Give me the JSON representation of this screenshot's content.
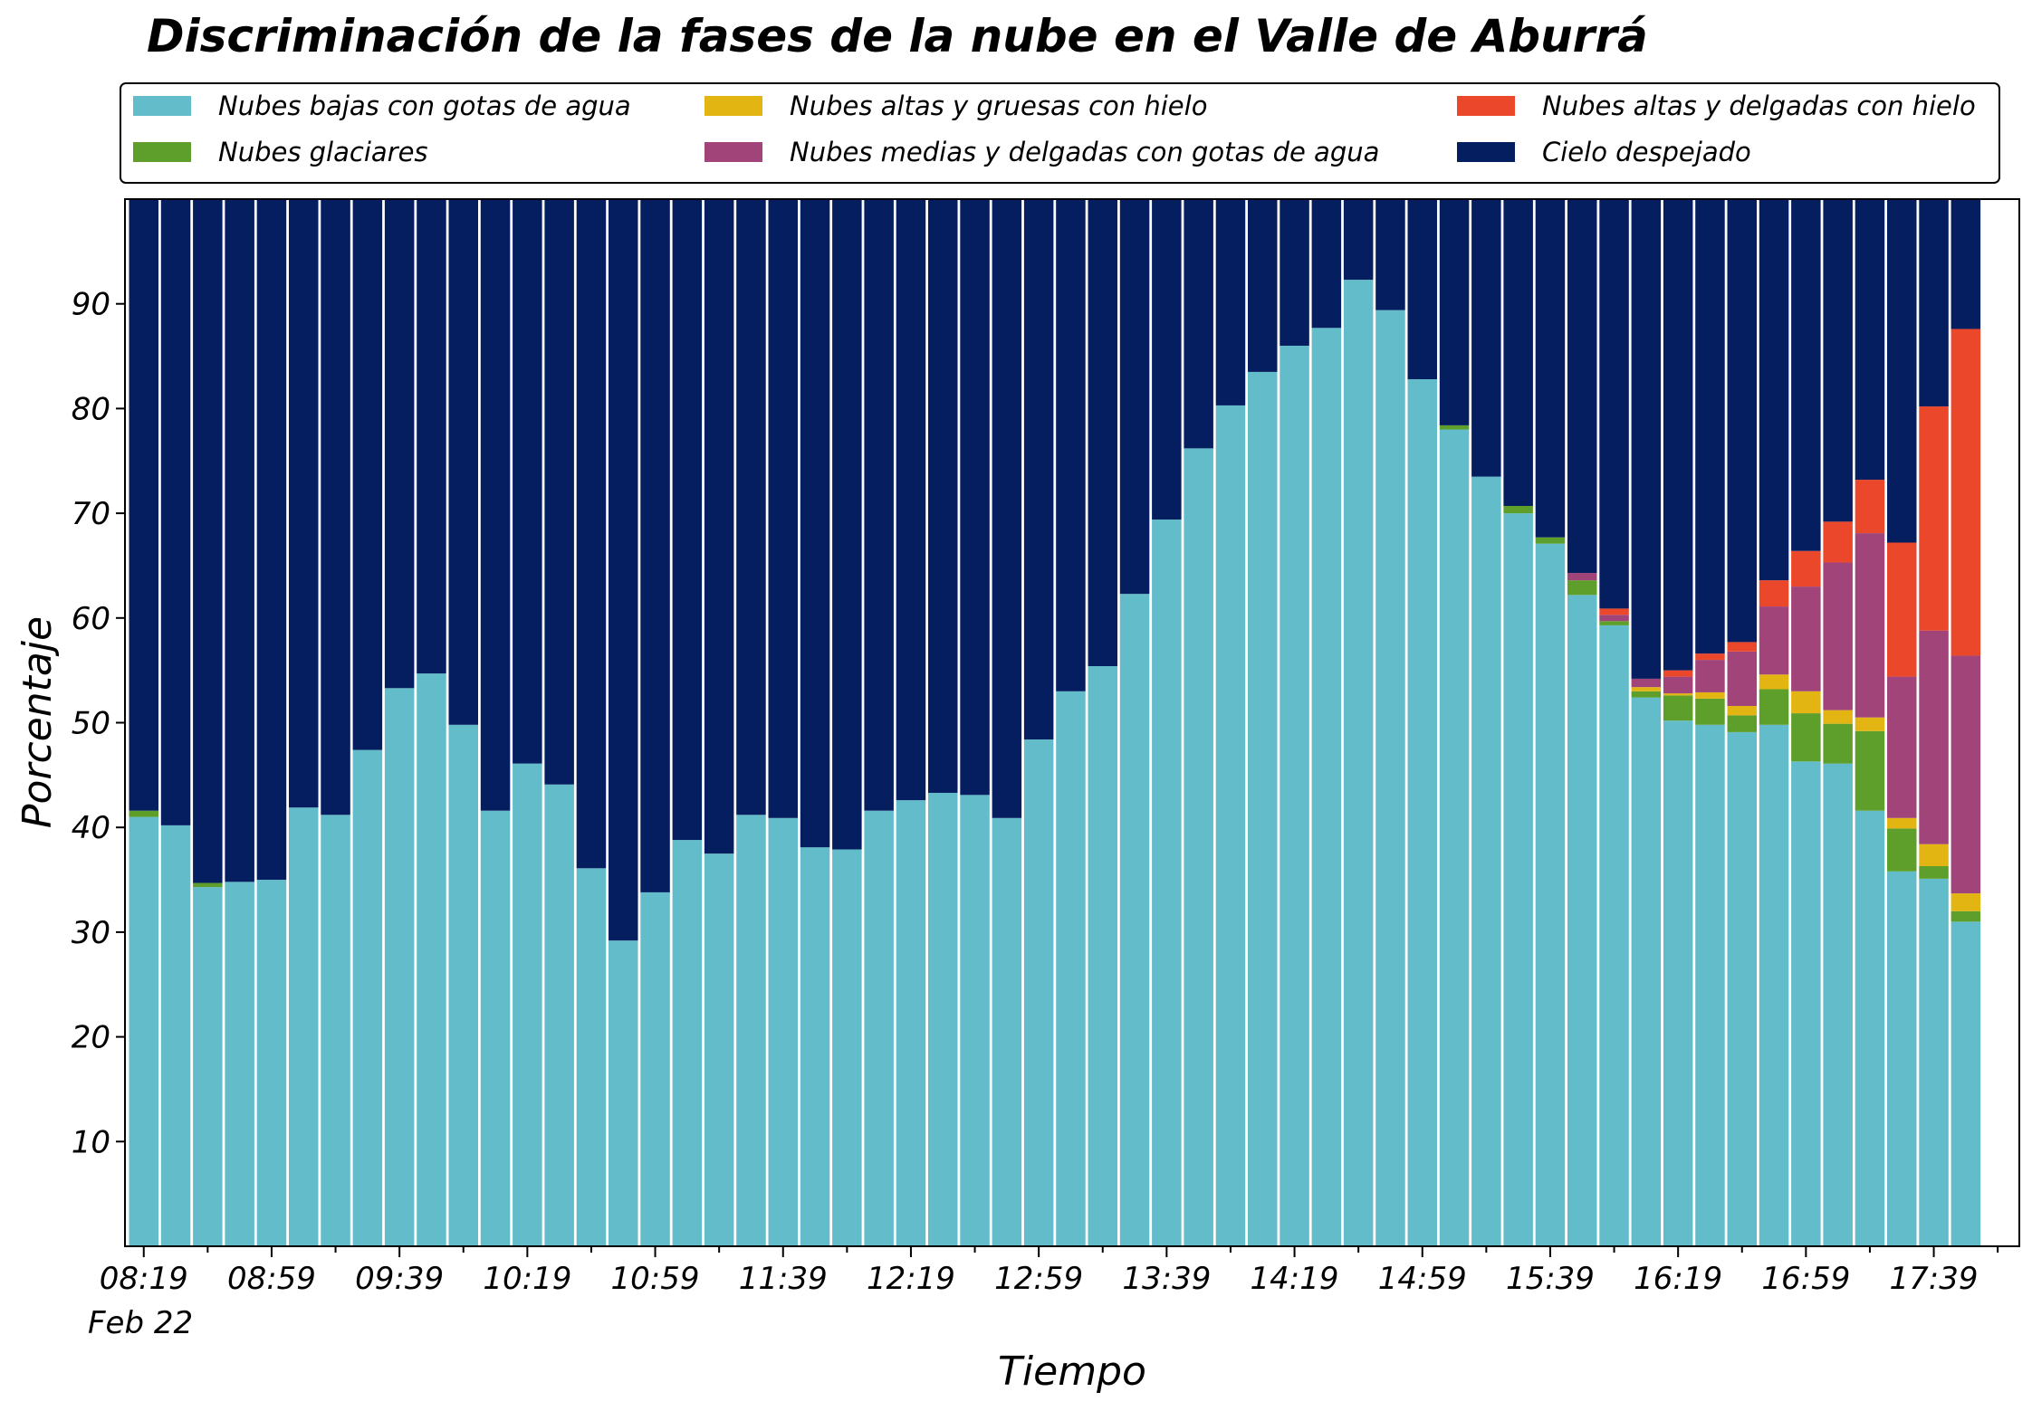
{
  "chart_data": {
    "type": "bar",
    "stacked": true,
    "title": "Discriminación de la fases de la nube en el Valle de Aburrá",
    "xlabel": "Tiempo",
    "ylabel": "Porcentaje",
    "ylim": [
      0,
      100
    ],
    "yticks": [
      10,
      20,
      30,
      40,
      50,
      60,
      70,
      80,
      90
    ],
    "grid": false,
    "legend_position": "top",
    "xtick_labels": [
      "08:19",
      "08:59",
      "09:39",
      "10:19",
      "10:59",
      "11:39",
      "12:19",
      "12:59",
      "13:39",
      "14:19",
      "14:59",
      "15:39",
      "16:19",
      "16:59",
      "17:39"
    ],
    "xtick_sublabel": "Feb 22",
    "series": [
      {
        "name": "Nubes bajas con gotas de agua",
        "color": "#63BCC9",
        "values": [
          41,
          40.2,
          34.3,
          34.8,
          35,
          41.9,
          41.2,
          47.4,
          53.3,
          54.7,
          49.8,
          41.6,
          46.1,
          44.1,
          36.1,
          29.2,
          33.8,
          38.8,
          37.5,
          41.2,
          40.9,
          38.1,
          37.9,
          41.6,
          42.6,
          43.3,
          43.1,
          40.9,
          48.4,
          53,
          55.4,
          62.3,
          69.4,
          76.2,
          80.3,
          83.5,
          86,
          87.7,
          92.3,
          89.4,
          82.8,
          78,
          73.5,
          70,
          67.1,
          62.2,
          59.3,
          52.4,
          50.2,
          49.8,
          49.1,
          49.8,
          46.3,
          46.1,
          41.6,
          35.8,
          35.1,
          31.0
        ]
      },
      {
        "name": "Nubes glaciares",
        "color": "#5E9E2A",
        "values": [
          0.6,
          0,
          0.4,
          0,
          0,
          0,
          0,
          0,
          0,
          0,
          0,
          0,
          0,
          0,
          0,
          0,
          0,
          0,
          0,
          0,
          0,
          0,
          0,
          0,
          0,
          0,
          0,
          0,
          0,
          0,
          0,
          0,
          0,
          0,
          0,
          0,
          0,
          0,
          0,
          0,
          0,
          0.4,
          0,
          0.7,
          0.6,
          1.4,
          0.4,
          0.6,
          2.4,
          2.5,
          1.6,
          3.4,
          4.6,
          3.8,
          7.6,
          4.1,
          1.2,
          1.0
        ]
      },
      {
        "name": "Nubes altas y gruesas con hielo",
        "color": "#E3B512",
        "values": [
          0,
          0,
          0,
          0,
          0,
          0,
          0,
          0,
          0,
          0,
          0,
          0,
          0,
          0,
          0,
          0,
          0,
          0,
          0,
          0,
          0,
          0,
          0,
          0,
          0,
          0,
          0,
          0,
          0,
          0,
          0,
          0,
          0,
          0,
          0,
          0,
          0,
          0,
          0,
          0,
          0,
          0,
          0,
          0,
          0,
          0,
          0,
          0.4,
          0.2,
          0.6,
          0.9,
          1.4,
          2.1,
          1.3,
          1.3,
          1.0,
          2.1,
          1.7
        ]
      },
      {
        "name": "Nubes medias y delgadas con gotas de agua",
        "color": "#A04479",
        "values": [
          0,
          0,
          0,
          0,
          0,
          0,
          0,
          0,
          0,
          0,
          0,
          0,
          0,
          0,
          0,
          0,
          0,
          0,
          0,
          0,
          0,
          0,
          0,
          0,
          0,
          0,
          0,
          0,
          0,
          0,
          0,
          0,
          0,
          0,
          0,
          0,
          0,
          0,
          0,
          0,
          0,
          0,
          0,
          0,
          0,
          0.7,
          0.6,
          0.8,
          1.6,
          3.1,
          5.2,
          6.5,
          10,
          14.1,
          17.6,
          13.5,
          20.4,
          22.7
        ]
      },
      {
        "name": "Nubes altas y delgadas con hielo",
        "color": "#EB482B",
        "values": [
          0,
          0,
          0,
          0,
          0,
          0,
          0,
          0,
          0,
          0,
          0,
          0,
          0,
          0,
          0,
          0,
          0,
          0,
          0,
          0,
          0,
          0,
          0,
          0,
          0,
          0,
          0,
          0,
          0,
          0,
          0,
          0,
          0,
          0,
          0,
          0,
          0,
          0,
          0,
          0,
          0,
          0,
          0,
          0,
          0,
          0,
          0.6,
          0,
          0.6,
          0.6,
          0.9,
          2.5,
          3.4,
          3.9,
          5.1,
          12.8,
          21.4,
          31.2
        ]
      },
      {
        "name": "Cielo despejado",
        "color": "#041E5F",
        "values": [
          58.4,
          59.8,
          65.3,
          65.2,
          65,
          58.1,
          58.8,
          52.6,
          46.7,
          45.3,
          50.2,
          58.4,
          53.9,
          55.9,
          63.9,
          70.8,
          66.2,
          61.2,
          62.5,
          58.8,
          59.1,
          61.9,
          62.1,
          58.4,
          57.4,
          56.7,
          56.9,
          59.1,
          51.6,
          47,
          44.6,
          37.7,
          30.6,
          23.8,
          19.7,
          16.5,
          14,
          12.3,
          7.7,
          10.6,
          17.2,
          21.6,
          26.5,
          29.3,
          32.3,
          35.7,
          39.1,
          45.8,
          45,
          43.4,
          42.3,
          36.4,
          33.6,
          30.8,
          26.8,
          32.8,
          19.8,
          12.4
        ]
      }
    ]
  }
}
